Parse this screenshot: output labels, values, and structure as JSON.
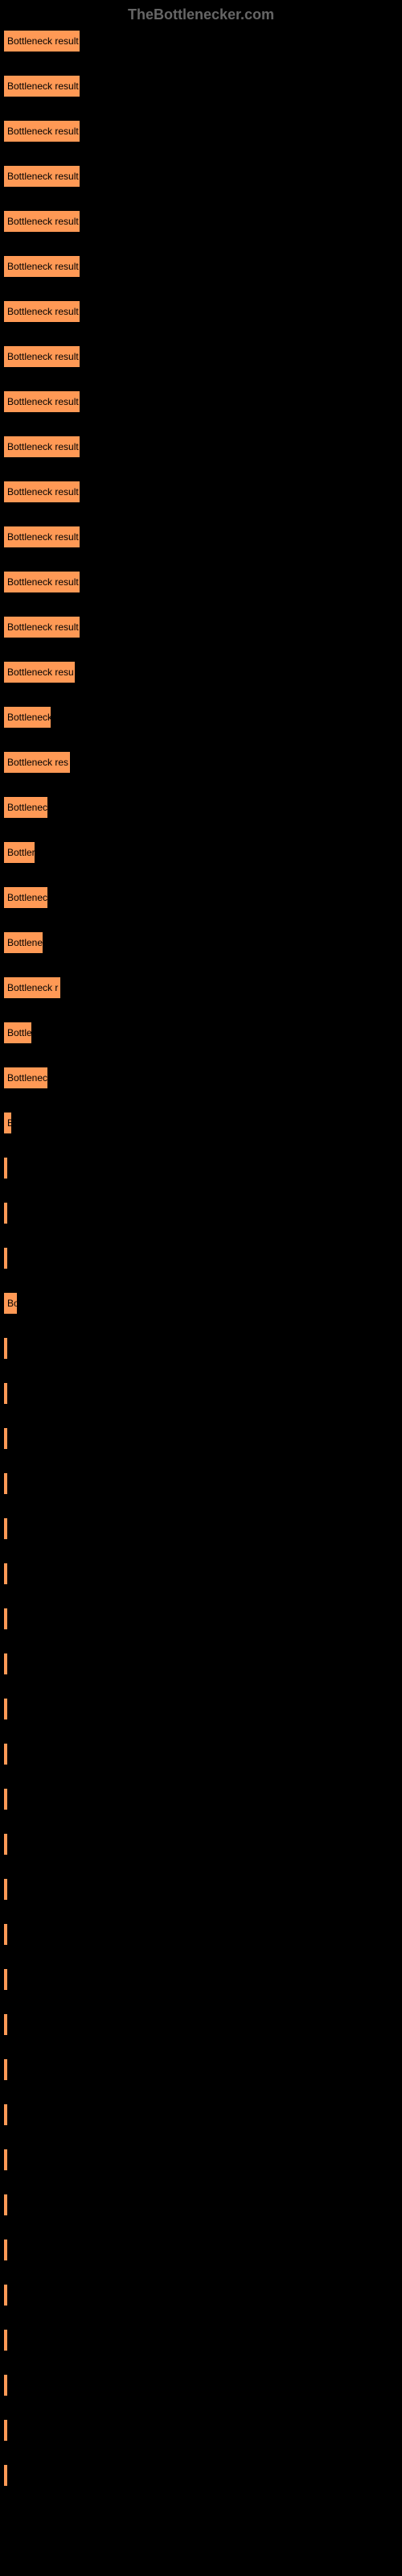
{
  "brand": "TheBottlenecker.com",
  "bar_color": "#ff9955",
  "text_color": "#000000",
  "background_color": "#000000",
  "brand_color": "#666666",
  "bars": [
    {
      "label": "Bottleneck result",
      "width": 96
    },
    {
      "label": "Bottleneck result",
      "width": 96
    },
    {
      "label": "Bottleneck result",
      "width": 96
    },
    {
      "label": "Bottleneck result",
      "width": 96
    },
    {
      "label": "Bottleneck result",
      "width": 96
    },
    {
      "label": "Bottleneck result",
      "width": 96
    },
    {
      "label": "Bottleneck result",
      "width": 96
    },
    {
      "label": "Bottleneck result",
      "width": 96
    },
    {
      "label": "Bottleneck result",
      "width": 96
    },
    {
      "label": "Bottleneck result",
      "width": 96
    },
    {
      "label": "Bottleneck result",
      "width": 96
    },
    {
      "label": "Bottleneck result",
      "width": 96
    },
    {
      "label": "Bottleneck result",
      "width": 96
    },
    {
      "label": "Bottleneck result",
      "width": 96
    },
    {
      "label": "Bottleneck resu",
      "width": 90
    },
    {
      "label": "Bottleneck",
      "width": 60
    },
    {
      "label": "Bottleneck res",
      "width": 84
    },
    {
      "label": "Bottlenec",
      "width": 56
    },
    {
      "label": "Bottler",
      "width": 40
    },
    {
      "label": "Bottlenec",
      "width": 56
    },
    {
      "label": "Bottlene",
      "width": 50
    },
    {
      "label": "Bottleneck r",
      "width": 72
    },
    {
      "label": "Bottle",
      "width": 36
    },
    {
      "label": "Bottlenec",
      "width": 56
    },
    {
      "label": "B",
      "width": 11
    },
    {
      "label": "",
      "width": 3
    },
    {
      "label": "",
      "width": 3
    },
    {
      "label": "",
      "width": 3
    },
    {
      "label": "Bo",
      "width": 18
    },
    {
      "label": "",
      "width": 3
    },
    {
      "label": "",
      "width": 3
    },
    {
      "label": "",
      "width": 3
    },
    {
      "label": "",
      "width": 3
    },
    {
      "label": "",
      "width": 2
    },
    {
      "label": "",
      "width": 2
    },
    {
      "label": "",
      "width": 2
    },
    {
      "label": "",
      "width": 2
    },
    {
      "label": "",
      "width": 2
    },
    {
      "label": "",
      "width": 2
    },
    {
      "label": "",
      "width": 2
    },
    {
      "label": "",
      "width": 2
    },
    {
      "label": "",
      "width": 2
    },
    {
      "label": "",
      "width": 2
    },
    {
      "label": "",
      "width": 2
    },
    {
      "label": "",
      "width": 2
    },
    {
      "label": "",
      "width": 2
    },
    {
      "label": "",
      "width": 2
    },
    {
      "label": "",
      "width": 2
    },
    {
      "label": "",
      "width": 2
    },
    {
      "label": "",
      "width": 2
    },
    {
      "label": "",
      "width": 2
    },
    {
      "label": "",
      "width": 2
    },
    {
      "label": "",
      "width": 2
    },
    {
      "label": "",
      "width": 2
    },
    {
      "label": "",
      "width": 2
    }
  ]
}
